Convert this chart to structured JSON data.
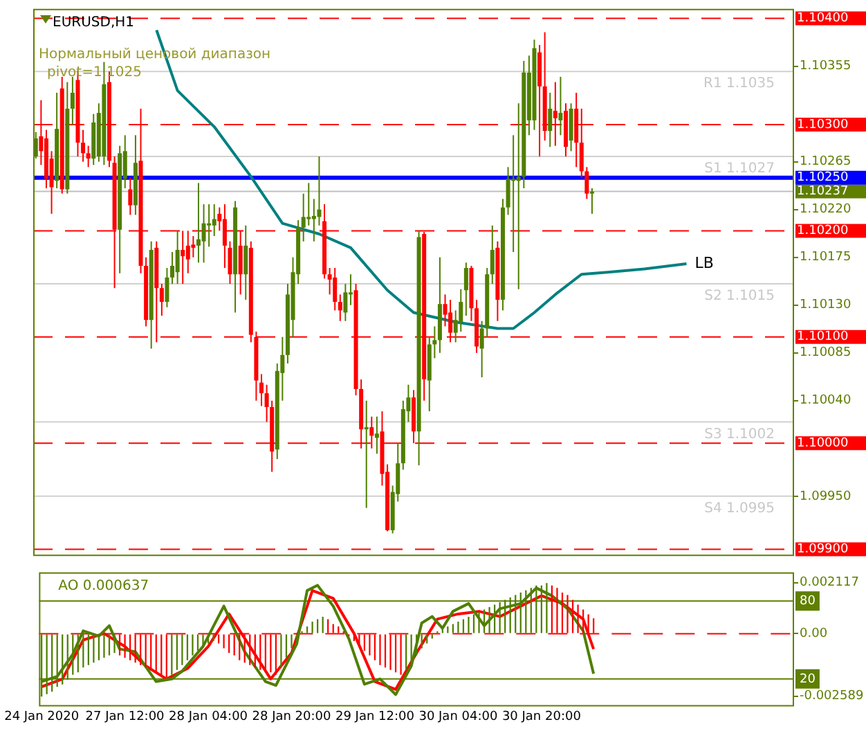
{
  "chart_data": [
    {
      "type": "candlestick",
      "title": "EURUSD,H1",
      "categories": [
        null,
        null,
        null,
        null,
        null,
        null,
        null,
        null,
        null,
        null,
        null,
        null,
        null,
        null,
        null,
        null,
        null,
        null,
        null,
        null,
        null,
        null,
        null,
        null,
        null,
        null,
        null,
        null,
        null,
        null,
        null,
        null,
        null,
        null,
        null,
        null,
        null,
        null,
        null,
        null,
        null,
        null,
        null,
        null,
        null,
        null,
        null,
        null,
        null,
        null,
        null,
        null,
        null,
        null,
        null,
        null,
        null,
        null,
        null,
        null,
        null,
        null,
        null,
        null,
        null,
        null,
        null,
        null,
        null,
        null,
        null,
        null,
        null,
        null,
        null,
        null,
        null,
        null,
        null,
        null,
        null,
        null,
        null,
        null,
        null,
        null,
        null,
        null,
        null,
        null,
        null,
        null,
        null,
        null,
        null,
        null,
        null,
        null,
        null,
        null,
        null,
        null,
        null,
        null,
        null,
        null,
        null,
        null,
        null,
        null,
        null,
        null,
        null,
        null,
        null,
        null,
        null,
        null,
        null,
        null,
        null,
        null,
        null,
        null,
        null,
        null,
        null,
        null,
        null,
        null,
        null,
        null,
        null,
        null,
        null,
        null,
        null,
        null,
        null,
        null,
        null,
        null,
        null,
        null,
        null
      ],
      "ohlc": [
        [
          1.1027,
          1.10293,
          1.10268,
          1.10287
        ],
        [
          1.10289,
          1.10323,
          1.10262,
          1.10275
        ],
        [
          1.10287,
          1.10295,
          1.1024,
          1.10249
        ],
        [
          1.10268,
          1.10275,
          1.10216,
          1.10241
        ],
        [
          1.10247,
          1.1033,
          1.1024,
          1.10296
        ],
        [
          1.10334,
          1.10345,
          1.10235,
          1.10239
        ],
        [
          1.10239,
          1.1034,
          1.10235,
          1.10315
        ],
        [
          1.10315,
          1.10345,
          1.103,
          1.1033
        ],
        [
          1.10342,
          1.10351,
          1.1027,
          1.10283
        ],
        [
          1.10283,
          1.10295,
          1.10265,
          1.10273
        ],
        [
          1.10273,
          1.1028,
          1.1026,
          1.10268
        ],
        [
          1.10268,
          1.1031,
          1.10262,
          1.10302
        ],
        [
          1.1027,
          1.1032,
          1.10265,
          1.10311
        ],
        [
          1.1027,
          1.10359,
          1.10262,
          1.10338
        ],
        [
          1.1034,
          1.1035,
          1.1026,
          1.10266
        ],
        [
          1.10264,
          1.1027,
          1.10146,
          1.10201
        ],
        [
          1.10201,
          1.1028,
          1.1016,
          1.10273
        ],
        [
          1.10249,
          1.1029,
          1.1024,
          1.10275
        ],
        [
          1.10239,
          1.1025,
          1.10215,
          1.10224
        ],
        [
          1.10224,
          1.1029,
          1.10215,
          1.10264
        ],
        [
          1.10266,
          1.10315,
          1.1016,
          1.10167
        ],
        [
          1.10167,
          1.10175,
          1.1011,
          1.10116
        ],
        [
          1.10116,
          1.1019,
          1.10089,
          1.10182
        ],
        [
          1.10184,
          1.1019,
          1.10095,
          1.10146
        ],
        [
          1.10146,
          1.1015,
          1.1012,
          1.10133
        ],
        [
          1.10133,
          1.10165,
          1.10128,
          1.10156
        ],
        [
          1.10156,
          1.1018,
          1.1015,
          1.10167
        ],
        [
          1.10161,
          1.102,
          1.1015,
          1.10182
        ],
        [
          1.10182,
          1.102,
          1.1015,
          1.10176
        ],
        [
          1.10186,
          1.102,
          1.1016,
          1.10173
        ],
        [
          1.10187,
          1.10195,
          1.10175,
          1.10184
        ],
        [
          1.10186,
          1.10245,
          1.1017,
          1.10192
        ],
        [
          1.1019,
          1.10225,
          1.1017,
          1.10207
        ],
        [
          1.10205,
          1.10225,
          1.10185,
          1.10207
        ],
        [
          1.10205,
          1.10225,
          1.10195,
          1.10211
        ],
        [
          1.10216,
          1.10222,
          1.102,
          1.10209
        ],
        [
          1.10211,
          1.10225,
          1.10165,
          1.10186
        ],
        [
          1.10184,
          1.1019,
          1.1015,
          1.10159
        ],
        [
          1.10159,
          1.10228,
          1.10123,
          1.10222
        ],
        [
          1.10186,
          1.102,
          1.1014,
          1.10159
        ],
        [
          1.10159,
          1.10205,
          1.10135,
          1.10186
        ],
        [
          1.10184,
          1.1019,
          1.10095,
          1.10102
        ],
        [
          1.101,
          1.10105,
          1.1004,
          1.10059
        ],
        [
          1.10057,
          1.10065,
          1.10035,
          1.10047
        ],
        [
          1.10047,
          1.10055,
          1.1002,
          1.10034
        ],
        [
          1.10034,
          1.1004,
          1.09973,
          1.09992
        ],
        [
          1.09994,
          1.10075,
          1.09985,
          1.10068
        ],
        [
          1.10066,
          1.101,
          1.1004,
          1.10083
        ],
        [
          1.10083,
          1.1015,
          1.10075,
          1.1014
        ],
        [
          1.10116,
          1.10175,
          1.101,
          1.10161
        ],
        [
          1.10159,
          1.1021,
          1.1015,
          1.10203
        ],
        [
          1.10203,
          1.10235,
          1.1019,
          1.10213
        ],
        [
          1.10211,
          1.10245,
          1.10205,
          1.10213
        ],
        [
          1.10211,
          1.1023,
          1.1019,
          1.10214
        ],
        [
          1.10213,
          1.1027,
          1.10205,
          1.1022
        ],
        [
          1.10209,
          1.10225,
          1.10155,
          1.10159
        ],
        [
          1.10159,
          1.10165,
          1.1014,
          1.10154
        ],
        [
          1.10156,
          1.10165,
          1.10125,
          1.10133
        ],
        [
          1.10133,
          1.1014,
          1.10115,
          1.10125
        ],
        [
          1.10123,
          1.1015,
          1.10115,
          1.10142
        ],
        [
          1.1014,
          1.10159,
          1.1013,
          1.10142
        ],
        [
          1.10144,
          1.1015,
          1.10045,
          1.10051
        ],
        [
          1.10051,
          1.1006,
          1.09995,
          1.10013
        ],
        [
          1.10013,
          1.1004,
          1.09939,
          1.10015
        ],
        [
          1.10015,
          1.10025,
          1.09995,
          1.10007
        ],
        [
          1.10005,
          1.10025,
          1.0999,
          1.10009
        ],
        [
          1.10011,
          1.1003,
          1.0996,
          1.09971
        ],
        [
          1.09973,
          1.0998,
          1.09917,
          1.09918
        ],
        [
          1.09918,
          1.0996,
          1.09915,
          1.09954
        ],
        [
          1.09952,
          1.1,
          1.09945,
          1.09981
        ],
        [
          1.09981,
          1.1004,
          1.09975,
          1.10032
        ],
        [
          1.1003,
          1.10055,
          1.1002,
          1.10043
        ],
        [
          1.10043,
          1.1005,
          1.1,
          1.10011
        ],
        [
          1.10011,
          1.102,
          1.09979,
          1.10194
        ],
        [
          1.10197,
          1.10199,
          1.1004,
          1.1006
        ],
        [
          1.10059,
          1.101,
          1.1003,
          1.10093
        ],
        [
          1.10093,
          1.1011,
          1.1008,
          1.10097
        ],
        [
          1.10097,
          1.10175,
          1.10085,
          1.10131
        ],
        [
          1.10131,
          1.1014,
          1.1011,
          1.10121
        ],
        [
          1.10123,
          1.10135,
          1.10095,
          1.10104
        ],
        [
          1.10104,
          1.10125,
          1.10095,
          1.10116
        ],
        [
          1.10114,
          1.10145,
          1.10105,
          1.10133
        ],
        [
          1.10144,
          1.1017,
          1.1012,
          1.10165
        ],
        [
          1.10165,
          1.10167,
          1.10115,
          1.10127
        ],
        [
          1.10127,
          1.10135,
          1.10085,
          1.10091
        ],
        [
          1.10089,
          1.10115,
          1.10062,
          1.10108
        ],
        [
          1.10108,
          1.10165,
          1.101,
          1.10159
        ],
        [
          1.10159,
          1.10205,
          1.1015,
          1.10182
        ],
        [
          1.10184,
          1.1019,
          1.10115,
          1.10135
        ],
        [
          1.10135,
          1.1023,
          1.10125,
          1.10222
        ],
        [
          1.10222,
          1.1026,
          1.10215,
          1.10249
        ],
        [
          1.10247,
          1.1029,
          1.1018,
          1.10249
        ],
        [
          1.10247,
          1.1032,
          1.10145,
          1.10251
        ],
        [
          1.10251,
          1.1036,
          1.1024,
          1.10349
        ],
        [
          1.10304,
          1.10365,
          1.1029,
          1.10349
        ],
        [
          1.10304,
          1.1038,
          1.10295,
          1.10372
        ],
        [
          1.10368,
          1.10375,
          1.1027,
          1.10336
        ],
        [
          1.10336,
          1.10387,
          1.10285,
          1.10294
        ],
        [
          1.10294,
          1.1033,
          1.10279,
          1.10315
        ],
        [
          1.10313,
          1.1034,
          1.1028,
          1.10306
        ],
        [
          1.10304,
          1.10345,
          1.1029,
          1.10311
        ],
        [
          1.10313,
          1.1032,
          1.1027,
          1.10279
        ],
        [
          1.10285,
          1.1032,
          1.10275,
          1.10315
        ],
        [
          1.10315,
          1.1033,
          1.1026,
          1.10283
        ],
        [
          1.10283,
          1.10315,
          1.1025,
          1.10256
        ],
        [
          1.10256,
          1.1026,
          1.1023,
          1.10235
        ],
        [
          1.10235,
          1.1024,
          1.10216,
          1.10237
        ],
        null,
        null,
        null,
        null,
        null,
        null,
        null,
        null,
        null,
        null,
        null,
        null,
        null,
        null,
        null,
        null,
        null,
        null,
        null,
        null,
        null,
        null,
        null,
        null,
        null,
        null,
        null,
        null,
        null,
        null,
        null,
        null,
        null,
        null,
        null,
        null,
        null,
        null
      ],
      "series": [
        {
          "name": "LB",
          "type": "line",
          "color": "#008080",
          "values": [
            null,
            null,
            null,
            null,
            null,
            null,
            null,
            null,
            null,
            null,
            null,
            null,
            null,
            null,
            null,
            null,
            null,
            null,
            null,
            null,
            null,
            null,
            null,
            1.10389,
            null,
            null,
            null,
            1.10332,
            null,
            null,
            null,
            null,
            null,
            null,
            1.10298,
            null,
            null,
            null,
            null,
            null,
            null,
            1.10251,
            null,
            null,
            null,
            null,
            null,
            1.10207,
            null,
            null,
            null,
            null,
            null,
            null,
            1.10197,
            null,
            null,
            null,
            null,
            null,
            1.10184,
            null,
            null,
            null,
            null,
            null,
            null,
            1.10144,
            null,
            null,
            null,
            null,
            1.10123,
            null,
            null,
            null,
            null,
            null,
            null,
            null,
            1.10114,
            null,
            null,
            null,
            null,
            null,
            null,
            null,
            1.10108,
            null,
            null,
            1.10108,
            null,
            null,
            null,
            1.10123,
            null,
            null,
            null,
            1.1014,
            null,
            null,
            null,
            null,
            1.10159,
            null,
            null,
            null,
            null,
            1.10161,
            null,
            null,
            null,
            null,
            null,
            null,
            1.10164,
            null,
            null,
            null,
            null,
            null,
            null,
            null,
            1.10169,
            null,
            null,
            null,
            null,
            null,
            null,
            null,
            null,
            null,
            null,
            null,
            null,
            null,
            null,
            null,
            null,
            null,
            null,
            null,
            null
          ]
        }
      ],
      "ylim": [
        1.09895,
        1.10409
      ],
      "yticks": [
        1.10355,
        1.10265,
        {
          "value": 1.1022,
          "label": "1.10220"
        },
        1.10175,
        {
          "value": 1.1013,
          "label": "1.10130"
        },
        1.10085,
        {
          "value": 1.1004,
          "label": "1.10040"
        },
        {
          "value": 1.0995,
          "label": "1.09950"
        }
      ],
      "tick_labels": "y",
      "ref_lines": [
        {
          "axis": "y",
          "value": 1.104,
          "label": "1.10400",
          "color": "#ff0000",
          "line_style": "dashed"
        },
        {
          "axis": "y",
          "value": 1.103,
          "label": "1.10300",
          "color": "#ff0000",
          "line_style": "dashed"
        },
        {
          "axis": "y",
          "value": 1.102,
          "label": "1.10200",
          "color": "#ff0000",
          "line_style": "dashed"
        },
        {
          "axis": "y",
          "value": 1.101,
          "label": "1.10100",
          "color": "#ff0000",
          "line_style": "dashed"
        },
        {
          "axis": "y",
          "value": 1.1,
          "label": "1.10000",
          "color": "#ff0000",
          "line_style": "dashed"
        },
        {
          "axis": "y",
          "value": 1.099,
          "label": "1.09900",
          "color": "#ff0000",
          "line_style": "dashed"
        },
        {
          "axis": "y",
          "value": 1.1035,
          "color": "#d0d0d0"
        },
        {
          "axis": "y",
          "value": 1.1027,
          "color": "#d0d0d0"
        },
        {
          "axis": "y",
          "value": 1.1015,
          "color": "#d0d0d0"
        },
        {
          "axis": "y",
          "value": 1.1002,
          "color": "#d0d0d0"
        },
        {
          "axis": "y",
          "value": 1.0995,
          "color": "#d0d0d0"
        },
        {
          "axis": "y",
          "value": 1.10237,
          "label": "1.10237",
          "color": "#c0c0c0"
        },
        {
          "axis": "y",
          "value": 1.1025,
          "label": "1.10250",
          "color": "#0000ff"
        }
      ],
      "annotations": [
        "Нормальный ценовой диапазон",
        "pivot=1.1025",
        {
          "text": "R1 1.1035",
          "y": 1.1035
        },
        {
          "text": "S1 1.1027",
          "y": 1.1027
        },
        {
          "text": "S2 1.1015",
          "y": 1.1015
        },
        {
          "text": "S3 1.1002",
          "y": 1.1002
        },
        {
          "text": "S4 1.0995",
          "y": 1.0995
        }
      ]
    },
    {
      "type": "bar",
      "title": "AO 0.000637",
      "categories": [
        "24 Jan 2020",
        null,
        null,
        null,
        null,
        null,
        null,
        null,
        null,
        null,
        null,
        null,
        null,
        null,
        null,
        null,
        "27 Jan 12:00",
        null,
        null,
        null,
        null,
        null,
        null,
        null,
        null,
        null,
        null,
        null,
        null,
        null,
        null,
        null,
        "28 Jan 04:00",
        null,
        null,
        null,
        null,
        null,
        null,
        null,
        null,
        null,
        null,
        null,
        null,
        null,
        null,
        null,
        "28 Jan 20:00",
        null,
        null,
        null,
        null,
        null,
        null,
        null,
        null,
        null,
        null,
        null,
        null,
        null,
        null,
        null,
        "29 Jan 12:00",
        null,
        null,
        null,
        null,
        null,
        null,
        null,
        null,
        null,
        null,
        null,
        null,
        null,
        null,
        null,
        "30 Jan 04:00",
        null,
        null,
        null,
        null,
        null,
        null,
        null,
        null,
        null,
        null,
        null,
        null,
        null,
        null,
        null,
        "30 Jan 20:00",
        null,
        null,
        null,
        null,
        null,
        null,
        null,
        null,
        null,
        null,
        null,
        null,
        null,
        null,
        null,
        null,
        null,
        null,
        null,
        null,
        null,
        null,
        null,
        null,
        null,
        null,
        null,
        null,
        null,
        null,
        null,
        null,
        null,
        null,
        null,
        null,
        null,
        null,
        null,
        null,
        null,
        null,
        null,
        null,
        null,
        null,
        null,
        null
      ],
      "series": [
        {
          "type": "bar",
          "values": [
            -0.0026,
            -0.0025,
            -0.0024,
            -0.0022,
            -0.0021,
            -0.0019,
            -0.0017,
            -0.0016,
            -0.0014,
            -0.0013,
            -0.0012,
            -0.0011,
            -0.001,
            -0.0009,
            -0.0008,
            -0.0009,
            -0.001,
            -0.0011,
            -0.0012,
            -0.0013,
            -0.0014,
            -0.0015,
            -0.0016,
            -0.0017,
            -0.0018,
            -0.0017,
            -0.0015,
            -0.0013,
            -0.0011,
            -0.0009,
            -0.0007,
            -0.0005,
            -0.0004,
            -0.0003,
            -0.0004,
            -0.0006,
            -0.0008,
            -0.0009,
            -0.0011,
            -0.0012,
            -0.0013,
            -0.0014,
            -0.0015,
            -0.0016,
            -0.0016,
            -0.0017,
            -0.0014,
            -0.001,
            -0.0006,
            -0.0002,
            0.0001,
            0.0003,
            0.0005,
            0.0006,
            0.0007,
            0.0006,
            0.0004,
            0.0003,
            0.0001,
            -0.0001,
            -0.0003,
            -0.0005,
            -0.0007,
            -0.0009,
            -0.0011,
            -0.0013,
            -0.0014,
            -0.0015,
            -0.0016,
            -0.0017,
            -0.0015,
            -0.0012,
            -0.0009,
            -0.0006,
            -0.0004,
            -0.0002,
            0.0001,
            0.0002,
            0.0003,
            0.0004,
            0.0005,
            0.0006,
            0.0007,
            0.0008,
            0.0009,
            0.001,
            0.0011,
            0.0012,
            0.0013,
            0.0014,
            0.0015,
            0.0016,
            0.0017,
            0.0018,
            0.0019,
            0.002,
            0.002,
            0.0021,
            0.002,
            0.0019,
            0.0017,
            0.0016,
            0.0014,
            0.0012,
            0.001,
            0.0008,
            0.000637,
            null,
            null,
            null,
            null,
            null,
            null,
            null,
            null,
            null,
            null,
            null,
            null,
            null,
            null,
            null,
            null,
            null,
            null,
            null,
            null,
            null,
            null,
            null,
            null,
            null,
            null,
            null,
            null,
            null,
            null,
            null,
            null,
            null,
            null,
            null,
            null,
            null,
            null
          ],
          "colors": [
            "#4f7f00",
            "#4f7f00",
            "#4f7f00",
            "#4f7f00",
            "#4f7f00",
            "#4f7f00",
            "#4f7f00",
            "#4f7f00",
            "#4f7f00",
            "#4f7f00",
            "#4f7f00",
            "#4f7f00",
            "#4f7f00",
            "#4f7f00",
            "#4f7f00",
            "#ff0000",
            "#ff0000",
            "#ff0000",
            "#ff0000",
            "#ff0000",
            "#ff0000",
            "#ff0000",
            "#ff0000",
            "#ff0000",
            "#ff0000",
            "#4f7f00",
            "#4f7f00",
            "#4f7f00",
            "#4f7f00",
            "#4f7f00",
            "#4f7f00",
            "#4f7f00",
            "#4f7f00",
            "#4f7f00",
            "#ff0000",
            "#ff0000",
            "#ff0000",
            "#ff0000",
            "#ff0000",
            "#ff0000",
            "#ff0000",
            "#ff0000",
            "#ff0000",
            "#ff0000",
            "#ff0000",
            "#ff0000",
            "#4f7f00",
            "#4f7f00",
            "#4f7f00",
            "#4f7f00",
            "#4f7f00",
            "#4f7f00",
            "#4f7f00",
            "#4f7f00",
            "#4f7f00",
            "#ff0000",
            "#ff0000",
            "#ff0000",
            "#ff0000",
            "#ff0000",
            "#ff0000",
            "#ff0000",
            "#ff0000",
            "#ff0000",
            "#ff0000",
            "#ff0000",
            "#ff0000",
            "#ff0000",
            "#ff0000",
            "#ff0000",
            "#4f7f00",
            "#4f7f00",
            "#4f7f00",
            "#4f7f00",
            "#4f7f00",
            "#4f7f00",
            "#4f7f00",
            "#4f7f00",
            "#4f7f00",
            "#4f7f00",
            "#4f7f00",
            "#4f7f00",
            "#4f7f00",
            "#4f7f00",
            "#4f7f00",
            "#4f7f00",
            "#4f7f00",
            "#4f7f00",
            "#4f7f00",
            "#4f7f00",
            "#4f7f00",
            "#4f7f00",
            "#4f7f00",
            "#4f7f00",
            "#4f7f00",
            "#4f7f00",
            "#4f7f00",
            "#4f7f00",
            "#ff0000",
            "#ff0000",
            "#ff0000",
            "#ff0000",
            "#ff0000",
            "#ff0000",
            "#ff0000",
            "#ff0000",
            "#ff0000",
            null,
            null,
            null,
            null,
            null,
            null,
            null,
            null,
            null,
            null,
            null,
            null,
            null,
            null,
            null,
            null,
            null,
            null,
            null,
            null,
            null,
            null,
            null,
            null,
            null,
            null,
            null,
            null,
            null,
            null,
            null,
            null,
            null,
            null,
            null,
            null,
            null,
            null
          ]
        },
        {
          "type": "line",
          "axis": "y2",
          "color": "#4f7f00",
          "values": [
            18,
            null,
            null,
            22,
            null,
            null,
            39,
            null,
            57,
            null,
            null,
            53,
            null,
            61,
            null,
            43,
            null,
            null,
            41,
            null,
            null,
            null,
            18,
            null,
            null,
            20,
            null,
            26,
            null,
            null,
            null,
            45,
            null,
            null,
            null,
            76,
            null,
            null,
            null,
            41,
            null,
            null,
            null,
            18,
            null,
            15,
            null,
            null,
            null,
            47,
            null,
            88,
            null,
            92,
            null,
            null,
            76,
            null,
            null,
            51,
            null,
            null,
            16,
            null,
            null,
            20,
            null,
            null,
            8,
            null,
            null,
            30,
            null,
            63,
            null,
            68,
            null,
            59,
            null,
            72,
            null,
            null,
            78,
            null,
            null,
            61,
            null,
            null,
            74,
            null,
            null,
            null,
            78,
            null,
            null,
            90,
            null,
            null,
            84,
            null,
            null,
            74,
            null,
            null,
            57,
            null,
            24,
            null,
            null,
            null,
            null,
            null,
            null,
            null,
            null,
            null,
            null,
            null,
            null,
            null,
            null,
            null,
            null,
            null,
            null,
            null,
            null,
            null,
            null,
            null,
            null,
            null,
            null,
            null,
            null,
            null,
            null,
            null,
            null,
            null,
            null,
            null,
            null,
            null,
            null
          ]
        },
        {
          "type": "line",
          "axis": "y2",
          "color": "#ff0000",
          "values": [
            14,
            null,
            null,
            null,
            20,
            null,
            null,
            null,
            50,
            null,
            null,
            null,
            55,
            null,
            null,
            null,
            45,
            null,
            null,
            null,
            30,
            null,
            null,
            null,
            20,
            null,
            null,
            null,
            28,
            null,
            null,
            null,
            45,
            null,
            null,
            null,
            70,
            null,
            null,
            null,
            45,
            null,
            null,
            null,
            20,
            null,
            null,
            null,
            40,
            null,
            null,
            null,
            88,
            null,
            null,
            null,
            82,
            null,
            null,
            null,
            55,
            null,
            null,
            null,
            18,
            null,
            null,
            null,
            12,
            null,
            null,
            null,
            40,
            null,
            null,
            null,
            66,
            null,
            null,
            null,
            70,
            null,
            null,
            null,
            72,
            null,
            null,
            null,
            68,
            null,
            null,
            null,
            76,
            null,
            null,
            null,
            84,
            null,
            null,
            null,
            78,
            null,
            null,
            null,
            66,
            null,
            43,
            null,
            null,
            null,
            null,
            null,
            null,
            null,
            null,
            null,
            null,
            null,
            null,
            null,
            null,
            null,
            null,
            null,
            null,
            null,
            null,
            null,
            null,
            null,
            null,
            null,
            null,
            null,
            null,
            null,
            null,
            null,
            null,
            null,
            null,
            null,
            null,
            null,
            null
          ]
        }
      ],
      "ylim": [
        -0.00295,
        0.00254
      ],
      "yticks": [
        0.002117,
        {
          "value": 0,
          "label": "0.00"
        },
        -0.002589
      ],
      "y2lim": [
        0,
        102
      ],
      "y2ticks": [
        80,
        20
      ],
      "ref_lines": [
        {
          "axis": "y",
          "value": 0,
          "color": "#ff0000",
          "line_style": "dashed"
        },
        {
          "axis": "y2",
          "value": 80,
          "color": "#5f7f00"
        },
        {
          "axis": "y2",
          "value": 20,
          "color": "#5f7f00"
        }
      ]
    }
  ]
}
